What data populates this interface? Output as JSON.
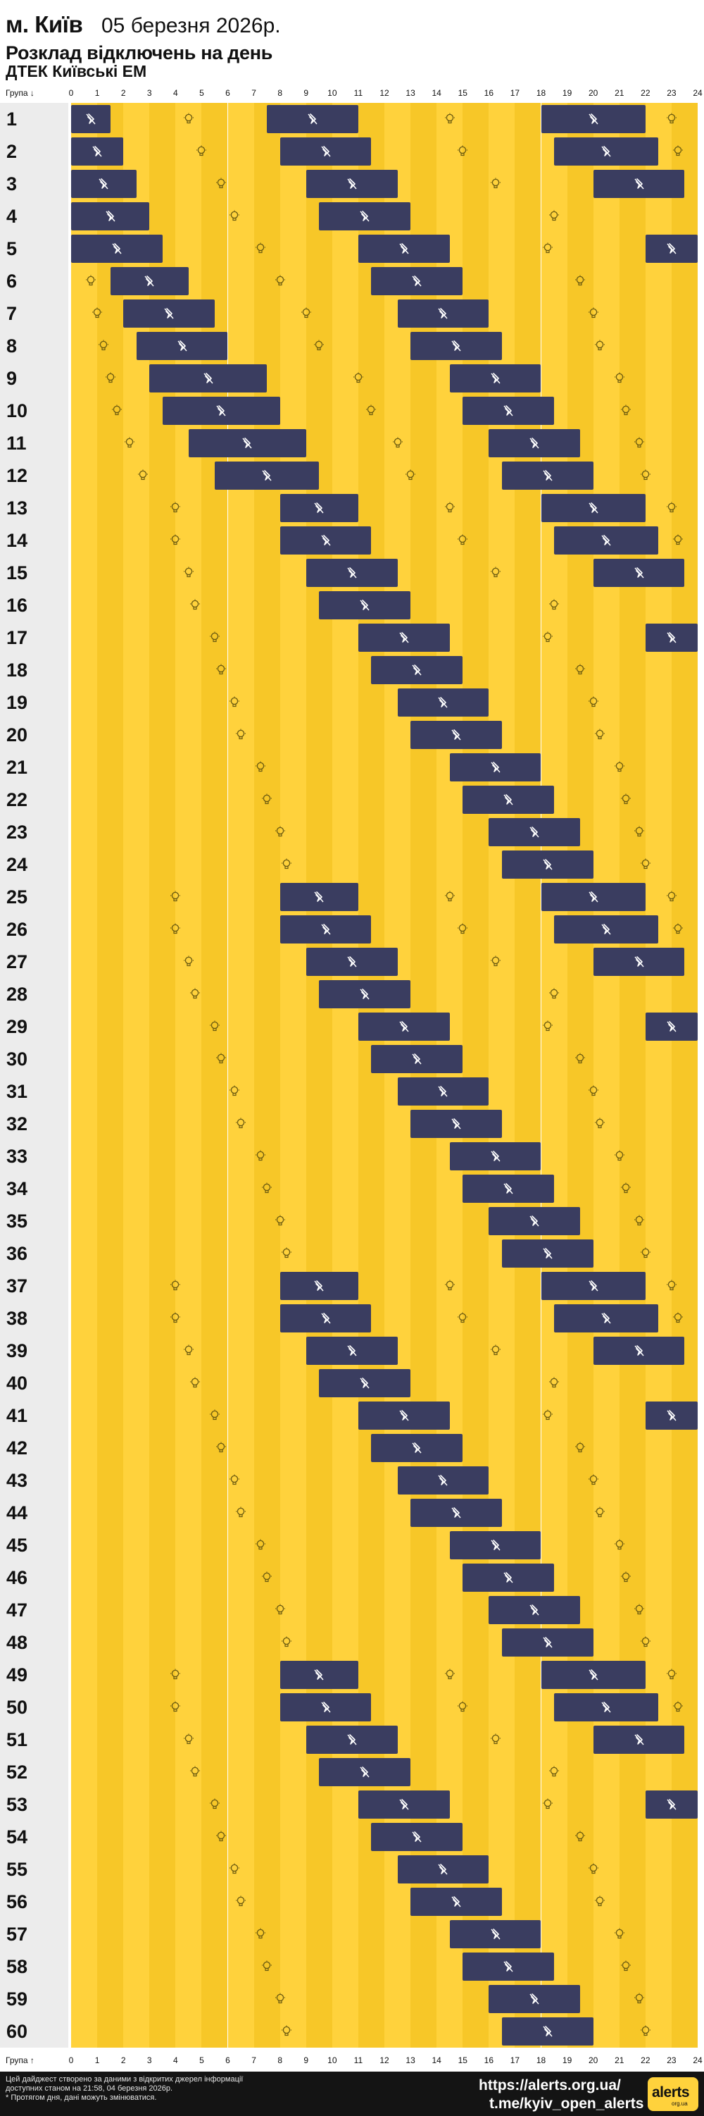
{
  "header": {
    "city": "м. Київ",
    "date": "05 березня 2026р.",
    "title": "Розклад відключень на день",
    "provider": "ДТЕК Київські ЕМ"
  },
  "axis": {
    "label_top": "Група ↓",
    "label_bottom": "Група ↑",
    "hours": [
      "0",
      "1",
      "2",
      "3",
      "4",
      "5",
      "6",
      "7",
      "8",
      "9",
      "10",
      "11",
      "12",
      "13",
      "14",
      "15",
      "16",
      "17",
      "18",
      "19",
      "20",
      "21",
      "22",
      "23",
      "24"
    ]
  },
  "colors": {
    "on": "#ffd23c",
    "on_alt": "#f7c728",
    "off": "#3a3d60",
    "label_bg": "#ececec"
  },
  "icons": {
    "on": "bulb-icon",
    "off": "power-off-icon"
  },
  "groups": [
    {
      "id": "1",
      "off": [
        [
          0,
          1.5
        ],
        [
          7.5,
          11
        ],
        [
          18,
          22
        ]
      ]
    },
    {
      "id": "2",
      "off": [
        [
          0,
          2
        ],
        [
          8,
          11.5
        ],
        [
          18.5,
          22.5
        ]
      ]
    },
    {
      "id": "3",
      "off": [
        [
          0,
          2.5
        ],
        [
          9,
          12.5
        ],
        [
          20,
          23.5
        ]
      ]
    },
    {
      "id": "4",
      "off": [
        [
          0,
          3
        ],
        [
          9.5,
          13
        ]
      ]
    },
    {
      "id": "5",
      "off": [
        [
          0,
          3.5
        ],
        [
          11,
          14.5
        ],
        [
          22,
          24
        ]
      ]
    },
    {
      "id": "6",
      "off": [
        [
          1.5,
          4.5
        ],
        [
          11.5,
          15
        ]
      ]
    },
    {
      "id": "7",
      "off": [
        [
          2,
          5.5
        ],
        [
          12.5,
          16
        ]
      ]
    },
    {
      "id": "8",
      "off": [
        [
          2.5,
          6
        ],
        [
          13,
          16.5
        ]
      ]
    },
    {
      "id": "9",
      "off": [
        [
          3,
          7.5
        ],
        [
          14.5,
          18
        ]
      ]
    },
    {
      "id": "10",
      "off": [
        [
          3.5,
          8
        ],
        [
          15,
          18.5
        ]
      ]
    },
    {
      "id": "11",
      "off": [
        [
          4.5,
          9
        ],
        [
          16,
          19.5
        ]
      ]
    },
    {
      "id": "12",
      "off": [
        [
          5.5,
          9.5
        ],
        [
          16.5,
          20
        ]
      ]
    },
    {
      "id": "13",
      "off": [
        [
          8,
          11
        ],
        [
          18,
          22
        ]
      ]
    },
    {
      "id": "14",
      "off": [
        [
          8,
          11.5
        ],
        [
          18.5,
          22.5
        ]
      ]
    },
    {
      "id": "15",
      "off": [
        [
          9,
          12.5
        ],
        [
          20,
          23.5
        ]
      ]
    },
    {
      "id": "16",
      "off": [
        [
          9.5,
          13
        ]
      ]
    },
    {
      "id": "17",
      "off": [
        [
          11,
          14.5
        ],
        [
          22,
          24
        ]
      ]
    },
    {
      "id": "18",
      "off": [
        [
          11.5,
          15
        ]
      ]
    },
    {
      "id": "19",
      "off": [
        [
          12.5,
          16
        ]
      ]
    },
    {
      "id": "20",
      "off": [
        [
          13,
          16.5
        ]
      ]
    },
    {
      "id": "21",
      "off": [
        [
          14.5,
          18
        ]
      ]
    },
    {
      "id": "22",
      "off": [
        [
          15,
          18.5
        ]
      ]
    },
    {
      "id": "23",
      "off": [
        [
          16,
          19.5
        ]
      ]
    },
    {
      "id": "24",
      "off": [
        [
          16.5,
          20
        ]
      ]
    },
    {
      "id": "25",
      "off": [
        [
          8,
          11
        ],
        [
          18,
          22
        ]
      ]
    },
    {
      "id": "26",
      "off": [
        [
          8,
          11.5
        ],
        [
          18.5,
          22.5
        ]
      ]
    },
    {
      "id": "27",
      "off": [
        [
          9,
          12.5
        ],
        [
          20,
          23.5
        ]
      ]
    },
    {
      "id": "28",
      "off": [
        [
          9.5,
          13
        ]
      ]
    },
    {
      "id": "29",
      "off": [
        [
          11,
          14.5
        ],
        [
          22,
          24
        ]
      ]
    },
    {
      "id": "30",
      "off": [
        [
          11.5,
          15
        ]
      ]
    },
    {
      "id": "31",
      "off": [
        [
          12.5,
          16
        ]
      ]
    },
    {
      "id": "32",
      "off": [
        [
          13,
          16.5
        ]
      ]
    },
    {
      "id": "33",
      "off": [
        [
          14.5,
          18
        ]
      ]
    },
    {
      "id": "34",
      "off": [
        [
          15,
          18.5
        ]
      ]
    },
    {
      "id": "35",
      "off": [
        [
          16,
          19.5
        ]
      ]
    },
    {
      "id": "36",
      "off": [
        [
          16.5,
          20
        ]
      ]
    },
    {
      "id": "37",
      "off": [
        [
          8,
          11
        ],
        [
          18,
          22
        ]
      ]
    },
    {
      "id": "38",
      "off": [
        [
          8,
          11.5
        ],
        [
          18.5,
          22.5
        ]
      ]
    },
    {
      "id": "39",
      "off": [
        [
          9,
          12.5
        ],
        [
          20,
          23.5
        ]
      ]
    },
    {
      "id": "40",
      "off": [
        [
          9.5,
          13
        ]
      ]
    },
    {
      "id": "41",
      "off": [
        [
          11,
          14.5
        ],
        [
          22,
          24
        ]
      ]
    },
    {
      "id": "42",
      "off": [
        [
          11.5,
          15
        ]
      ]
    },
    {
      "id": "43",
      "off": [
        [
          12.5,
          16
        ]
      ]
    },
    {
      "id": "44",
      "off": [
        [
          13,
          16.5
        ]
      ]
    },
    {
      "id": "45",
      "off": [
        [
          14.5,
          18
        ]
      ]
    },
    {
      "id": "46",
      "off": [
        [
          15,
          18.5
        ]
      ]
    },
    {
      "id": "47",
      "off": [
        [
          16,
          19.5
        ]
      ]
    },
    {
      "id": "48",
      "off": [
        [
          16.5,
          20
        ]
      ]
    },
    {
      "id": "49",
      "off": [
        [
          8,
          11
        ],
        [
          18,
          22
        ]
      ]
    },
    {
      "id": "50",
      "off": [
        [
          8,
          11.5
        ],
        [
          18.5,
          22.5
        ]
      ]
    },
    {
      "id": "51",
      "off": [
        [
          9,
          12.5
        ],
        [
          20,
          23.5
        ]
      ]
    },
    {
      "id": "52",
      "off": [
        [
          9.5,
          13
        ]
      ]
    },
    {
      "id": "53",
      "off": [
        [
          11,
          14.5
        ],
        [
          22,
          24
        ]
      ]
    },
    {
      "id": "54",
      "off": [
        [
          11.5,
          15
        ]
      ]
    },
    {
      "id": "55",
      "off": [
        [
          12.5,
          16
        ]
      ]
    },
    {
      "id": "56",
      "off": [
        [
          13,
          16.5
        ]
      ]
    },
    {
      "id": "57",
      "off": [
        [
          14.5,
          18
        ]
      ]
    },
    {
      "id": "58",
      "off": [
        [
          15,
          18.5
        ]
      ]
    },
    {
      "id": "59",
      "off": [
        [
          16,
          19.5
        ]
      ]
    },
    {
      "id": "60",
      "off": [
        [
          16.5,
          20
        ]
      ]
    }
  ],
  "footer": {
    "note_line1": "Цей дайджест створено за даними з відкритих джерел інформації",
    "note_line2": "доступних станом на 21:58, 04 березня 2026р.",
    "note_line3": "* Протягом дня, дані можуть змінюватися.",
    "link_site": "https://alerts.org.ua/",
    "link_telegram": "t.me/kyiv_open_alerts",
    "logo_text": "alerts",
    "logo_sub": "org.ua"
  }
}
